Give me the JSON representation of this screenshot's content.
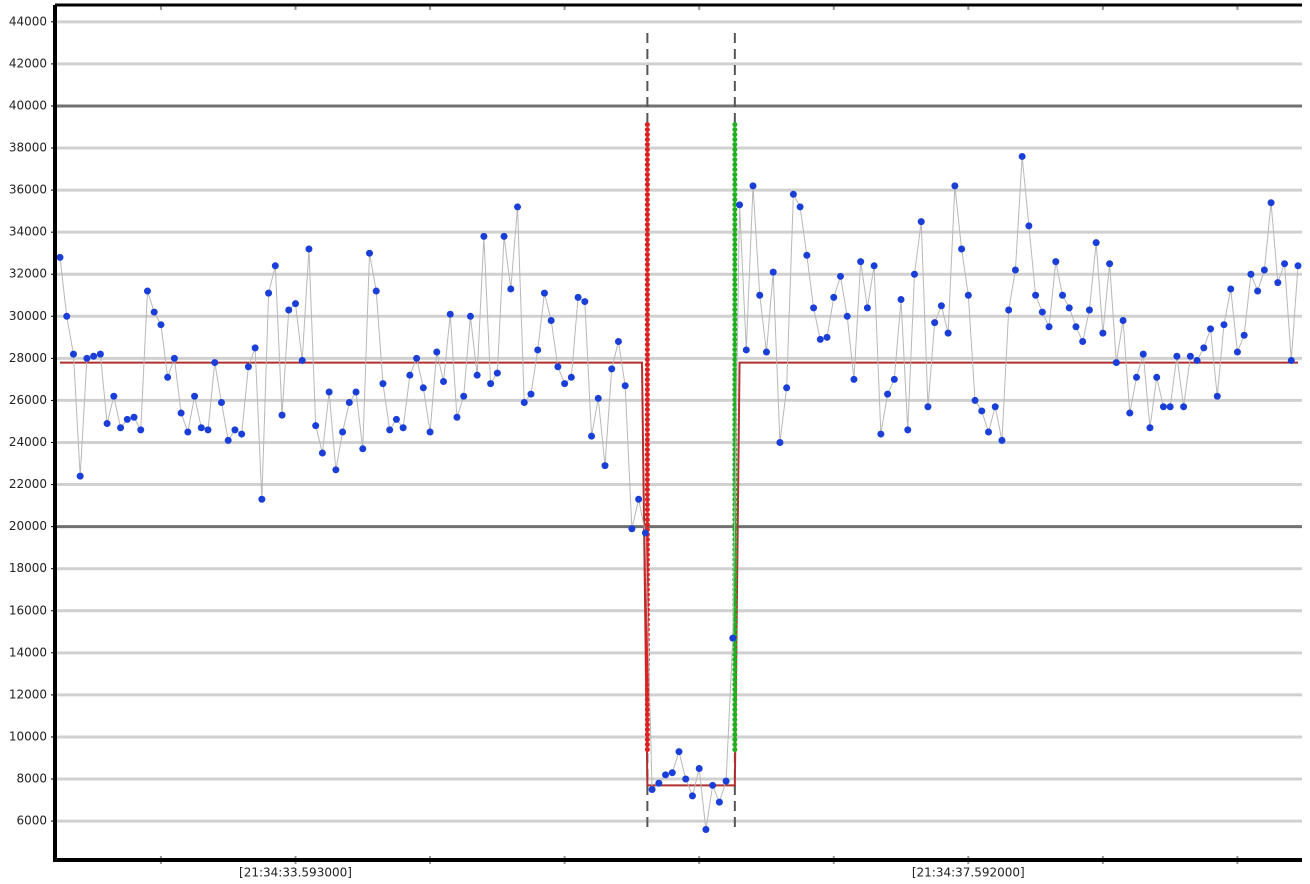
{
  "chart_data": {
    "type": "line",
    "categories": [
      null,
      null,
      null,
      null,
      null,
      null,
      null,
      null,
      null,
      null,
      null,
      null,
      null,
      null,
      null,
      null,
      null,
      null,
      null,
      null,
      null,
      null,
      null,
      null,
      null,
      null,
      null,
      null,
      null,
      null,
      null,
      null,
      null,
      null,
      null,
      "[21:34:33.593000]",
      null,
      null,
      null,
      null,
      null,
      null,
      null,
      null,
      null,
      null,
      null,
      null,
      null,
      null,
      null,
      null,
      null,
      null,
      null,
      null,
      null,
      null,
      null,
      null,
      null,
      null,
      null,
      null,
      null,
      null,
      null,
      null,
      null,
      null,
      null,
      null,
      null,
      null,
      null,
      null,
      null,
      null,
      null,
      null,
      null,
      null,
      null,
      null,
      null,
      null,
      null,
      null,
      null,
      null,
      null,
      null,
      null,
      null,
      null,
      null,
      null,
      null,
      null,
      null,
      null,
      null,
      null,
      null,
      null,
      null,
      null,
      null,
      null,
      null,
      null,
      null,
      null,
      null,
      null,
      null,
      null,
      null,
      null,
      null,
      null,
      null,
      null,
      null,
      null,
      null,
      null,
      null,
      null,
      null,
      null,
      null,
      null,
      null,
      null,
      "[21:34:37.592000]",
      null,
      null,
      null,
      null,
      null,
      null,
      null,
      null,
      null,
      null,
      null,
      null,
      null,
      null,
      null,
      null,
      null,
      null,
      null,
      null,
      null,
      null,
      null,
      null,
      null,
      null,
      null,
      null,
      null,
      null,
      null,
      null,
      null,
      null,
      null,
      null,
      null,
      null,
      null,
      null,
      null,
      null,
      null,
      null,
      null,
      null,
      null,
      null,
      null
    ],
    "series": [
      {
        "color": "#1a3fd8",
        "line_color": "#b8b8b8",
        "values": [
          32800,
          30000,
          28200,
          22400,
          28000,
          28100,
          28200,
          24900,
          26200,
          24700,
          25100,
          25200,
          24600,
          31200,
          30200,
          29600,
          27100,
          28000,
          25400,
          24500,
          26200,
          24700,
          24600,
          27800,
          25900,
          24100,
          24600,
          24400,
          27600,
          28500,
          21300,
          31100,
          32400,
          25300,
          30300,
          30600,
          27900,
          33200,
          24800,
          23500,
          26400,
          22700,
          24500,
          25900,
          26400,
          23700,
          33000,
          31200,
          26800,
          24600,
          25100,
          24700,
          27200,
          28000,
          26600,
          24500,
          28300,
          26900,
          30100,
          25200,
          26200,
          30000,
          27200,
          33800,
          26800,
          27300,
          33800,
          31300,
          35200,
          25900,
          26300,
          28400,
          31100,
          29800,
          27600,
          26800,
          27100,
          30900,
          30700,
          24300,
          26100,
          22900,
          27500,
          28800,
          26700,
          19900,
          21300,
          19700,
          7500,
          7800,
          8200,
          8300,
          9300,
          8000,
          7200,
          8500,
          5600,
          7700,
          6900,
          7900,
          14700,
          35300,
          28400,
          36200,
          31000,
          28300,
          32100,
          24000,
          26600,
          35800,
          35200,
          32900,
          30400,
          28900,
          29000,
          30900,
          31900,
          30000,
          27000,
          32600,
          30400,
          32400,
          24400,
          26300,
          27000,
          30800,
          24600,
          32000,
          34500,
          25700,
          29700,
          30500,
          29200,
          36200,
          33200,
          31000,
          26000,
          25500,
          24500,
          25700,
          24100,
          30300,
          32200,
          37600,
          34300,
          31000,
          30200,
          29500,
          32600,
          31000,
          30400,
          29500,
          28800,
          30300,
          33500,
          29200,
          32500,
          27800,
          29800,
          25400,
          27100,
          28200,
          24700,
          27100,
          25700,
          25700,
          28100,
          25700,
          28100,
          27900,
          28500,
          29400,
          26200,
          29600,
          31300,
          28300,
          29100,
          32000,
          31200,
          32200,
          35400,
          31600,
          32500,
          27900,
          32400
        ]
      }
    ],
    "mean_color": "#b03030",
    "mean_segments": [
      {
        "x": [
          0,
          86.5
        ],
        "value": 27800
      },
      {
        "x": [
          87.3,
          100.3
        ],
        "value": 7700
      },
      {
        "x": [
          101,
          184
        ],
        "value": 27800
      }
    ],
    "markers": [
      {
        "x": 87.3,
        "color": "#e02020",
        "range": [
          9400,
          39300
        ]
      },
      {
        "x": 100.3,
        "color": "#20b020",
        "range": [
          9400,
          39300
        ]
      }
    ],
    "ylim": [
      4150,
      44800
    ],
    "yticks": [
      6000,
      8000,
      10000,
      12000,
      14000,
      16000,
      18000,
      20000,
      22000,
      24000,
      26000,
      28000,
      30000,
      32000,
      34000,
      36000,
      38000,
      40000,
      42000,
      44000
    ],
    "major_gridlines": [
      20000,
      40000
    ],
    "grid": true
  }
}
